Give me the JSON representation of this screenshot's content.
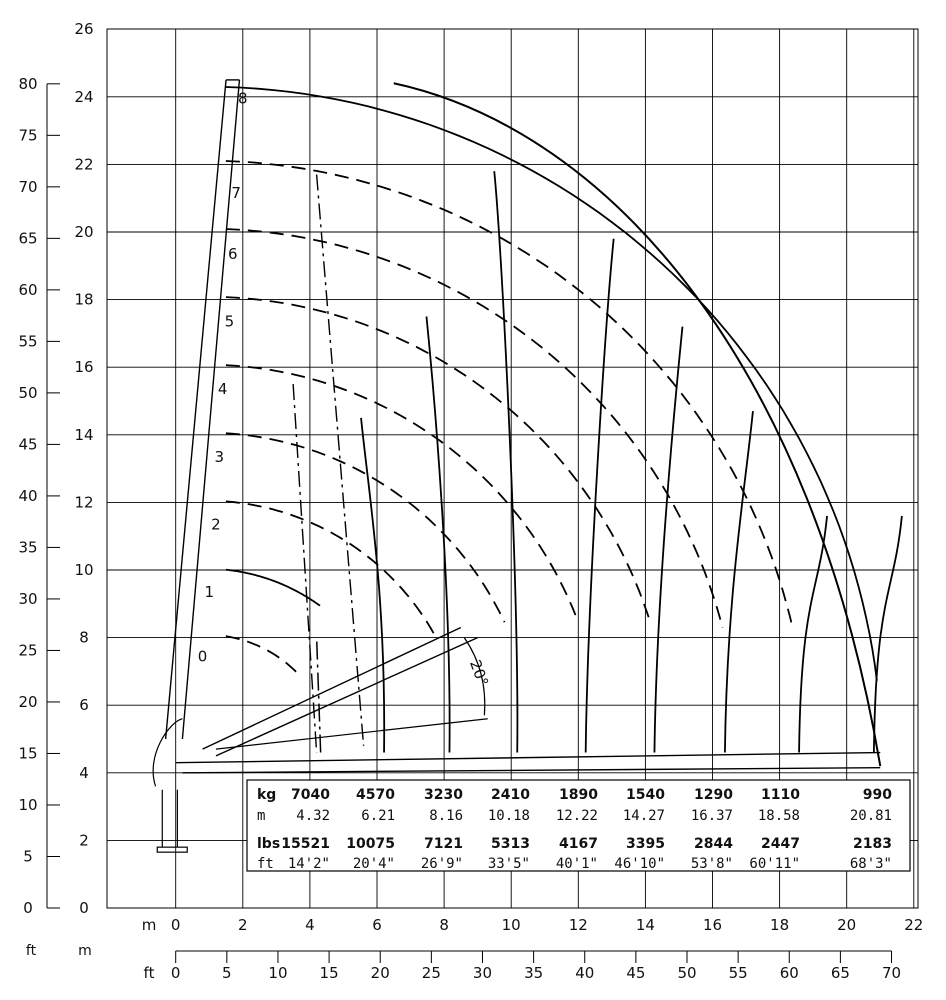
{
  "chart_data": {
    "type": "load-radius diagram",
    "y_axis_m": {
      "unit": "m",
      "ticks": [
        0,
        2,
        4,
        6,
        8,
        10,
        12,
        14,
        16,
        18,
        20,
        22,
        24,
        26
      ]
    },
    "y_axis_ft": {
      "unit": "ft",
      "ticks": [
        0,
        5,
        10,
        15,
        20,
        25,
        30,
        35,
        40,
        45,
        50,
        55,
        60,
        65,
        70,
        75,
        80
      ]
    },
    "x_axis_m": {
      "unit": "m",
      "ticks": [
        0,
        2,
        4,
        6,
        8,
        10,
        12,
        14,
        16,
        18,
        20,
        22
      ]
    },
    "x_axis_ft": {
      "unit": "ft",
      "ticks": [
        0,
        5,
        10,
        15,
        20,
        25,
        30,
        35,
        40,
        45,
        50,
        55,
        60,
        65,
        70
      ]
    },
    "boom_positions": [
      "0",
      "1",
      "2",
      "3",
      "4",
      "5",
      "6",
      "7",
      "8"
    ],
    "angle_label": "20°",
    "capacity_table": {
      "rows": [
        {
          "unit": "kg",
          "values": [
            "7040",
            "4570",
            "3230",
            "2410",
            "1890",
            "1540",
            "1290",
            "1110",
            "990"
          ]
        },
        {
          "unit": "m",
          "values": [
            "4.32",
            "6.21",
            "8.16",
            "10.18",
            "12.22",
            "14.27",
            "16.37",
            "18.58",
            "20.81"
          ]
        },
        {
          "unit": "lbs",
          "values": [
            "15521",
            "10075",
            "7121",
            "5313",
            "4167",
            "3395",
            "2844",
            "2447",
            "2183"
          ]
        },
        {
          "unit": "ft",
          "values": [
            "14'2\"",
            "20'4\"",
            "26'9\"",
            "33'5\"",
            "40'1\"",
            "46'10\"",
            "53'8\"",
            "60'11\"",
            "68'3\""
          ]
        }
      ]
    }
  }
}
